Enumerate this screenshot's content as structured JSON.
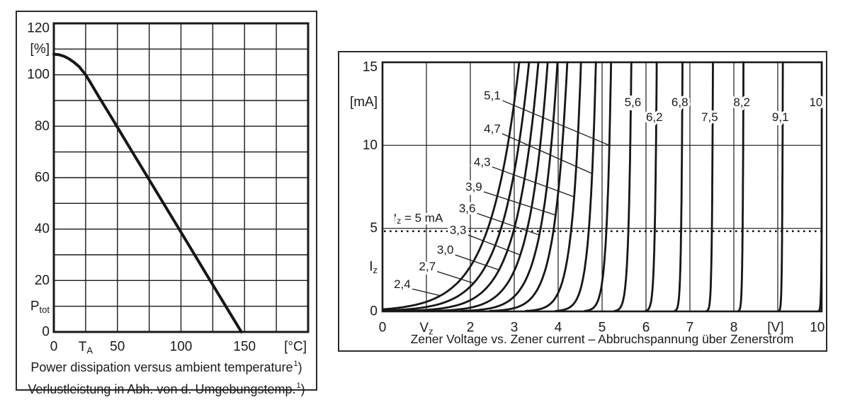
{
  "page": {
    "background": "#ffffff",
    "ink": "#1a1a1a",
    "frame_color": "#2b2b2b"
  },
  "chart_data": [
    {
      "type": "line",
      "title": "Power dissipation versus ambient temperature",
      "title_de": "Verlustleistung in Abh. von d. Umgebungstemp.",
      "footnote_marker": "1",
      "footnote_suffix": ")",
      "xlabel": "[°C]",
      "ylabel": "[%]",
      "x_axis_symbol": {
        "base": "T",
        "sub": "A"
      },
      "y_axis_symbol": {
        "base": "P",
        "sub": "tot"
      },
      "xlim": [
        0,
        200
      ],
      "ylim": [
        0,
        120
      ],
      "grid_step_x": 25,
      "grid_step_y": 10,
      "grid": "on",
      "x_ticks": [
        {
          "x": 0,
          "label": "0"
        },
        {
          "x": 25,
          "label": {
            "base": "T",
            "sub": "A"
          }
        },
        {
          "x": 50,
          "label": "50"
        },
        {
          "x": 100,
          "label": "100"
        },
        {
          "x": 150,
          "label": "150"
        },
        {
          "x": 190,
          "label": "[°C]"
        }
      ],
      "y_ticks": [
        {
          "y": 120,
          "label": "120"
        },
        {
          "y": 110,
          "label": "[%]"
        },
        {
          "y": 100,
          "label": "100"
        },
        {
          "y": 80,
          "label": "80"
        },
        {
          "y": 60,
          "label": "60"
        },
        {
          "y": 40,
          "label": "40"
        },
        {
          "y": 20,
          "label": "20"
        },
        {
          "y": 10,
          "label": {
            "base": "P",
            "sub": "tot"
          }
        },
        {
          "y": 0,
          "label": "0"
        }
      ],
      "series": [
        {
          "name": "Ptot derating vs ambient temperature",
          "points": [
            [
              0,
              108
            ],
            [
              4,
              107.8
            ],
            [
              8,
              107.2
            ],
            [
              12,
              106.2
            ],
            [
              16,
              104.8
            ],
            [
              20,
              103.1
            ],
            [
              25,
              100
            ],
            [
              27.5,
              98
            ],
            [
              35,
              91.8
            ],
            [
              45,
              83.7
            ],
            [
              60,
              71.4
            ],
            [
              80,
              55.1
            ],
            [
              100,
              38.8
            ],
            [
              120,
              22.4
            ],
            [
              140,
              6.1
            ],
            [
              147.5,
              0
            ]
          ]
        }
      ]
    },
    {
      "type": "line",
      "title": "Zener Voltage vs. Zener current – Abbruchspannung über Zenerstrom",
      "xlabel": "[V]",
      "ylabel": "[mA]",
      "xlim": [
        0,
        10
      ],
      "ylim": [
        0,
        15
      ],
      "grid_step_x": 1,
      "grid_step_y": 5,
      "grid": "on",
      "marker_line": {
        "y": 5,
        "style": "dotted",
        "label": {
          "base": "I",
          "sub": "z",
          "rest": " = 5 mA"
        },
        "label_pos": [
          0.25,
          5.6
        ]
      },
      "x_ticks": [
        {
          "x": 0,
          "label": "0"
        },
        {
          "x": 1,
          "label": {
            "base": "V",
            "sub": "z"
          }
        },
        {
          "x": 2,
          "label": "2"
        },
        {
          "x": 3,
          "label": "3"
        },
        {
          "x": 4,
          "label": "4"
        },
        {
          "x": 5,
          "label": "5"
        },
        {
          "x": 6,
          "label": "6"
        },
        {
          "x": 7,
          "label": "7"
        },
        {
          "x": 8,
          "label": "8"
        },
        {
          "x": 8.95,
          "label": "[V]"
        },
        {
          "x": 9.9,
          "label": "10"
        }
      ],
      "y_ticks": [
        {
          "y": 15,
          "label": "15"
        },
        {
          "y": 12.6,
          "label": "[mA]"
        },
        {
          "y": 10,
          "label": "10"
        },
        {
          "y": 5,
          "label": "5"
        },
        {
          "y": 2.7,
          "label": {
            "base": "I",
            "sub": "z"
          }
        },
        {
          "y": 0,
          "label": "0"
        }
      ],
      "series": [
        {
          "name": "2.4 V zener",
          "vz": 2.4,
          "s": 0.65,
          "label": "2,4",
          "label_pos": [
            0.45,
            1.65
          ],
          "leader_i": 0.95
        },
        {
          "name": "2.7 V zener",
          "vz": 2.7,
          "s": 0.58,
          "label": "2,7",
          "label_pos": [
            1.02,
            2.7
          ],
          "leader_i": 1.7
        },
        {
          "name": "3.0 V zener",
          "vz": 3.0,
          "s": 0.5,
          "label": "3,0",
          "label_pos": [
            1.43,
            3.7
          ],
          "leader_i": 2.5
        },
        {
          "name": "3.3 V zener",
          "vz": 3.3,
          "s": 0.42,
          "label": "3,3",
          "label_pos": [
            1.72,
            4.9
          ],
          "leader_i": 3.4
        },
        {
          "name": "3.6 V zener",
          "vz": 3.6,
          "s": 0.35,
          "label": "3,6",
          "label_pos": [
            1.93,
            6.2
          ],
          "leader_i": 4.6
        },
        {
          "name": "3.9 V zener",
          "vz": 3.9,
          "s": 0.28,
          "label": "3,9",
          "label_pos": [
            2.08,
            7.5
          ],
          "leader_i": 5.8
        },
        {
          "name": "4.3 V zener",
          "vz": 4.3,
          "s": 0.2,
          "label": "4,3",
          "label_pos": [
            2.27,
            9.0
          ],
          "leader_i": 6.9
        },
        {
          "name": "4.7 V zener",
          "vz": 4.7,
          "s": 0.145,
          "label": "4,7",
          "label_pos": [
            2.5,
            11.0
          ],
          "leader_i": 8.3
        },
        {
          "name": "5.1 V zener",
          "vz": 5.1,
          "s": 0.095,
          "label": "5,1",
          "label_pos": [
            2.5,
            13.0
          ],
          "leader_i": 10.0
        },
        {
          "name": "5.6 V zener",
          "vz": 5.6,
          "s": 0.06,
          "label": "5,6",
          "label_pos": [
            5.7,
            12.6
          ]
        },
        {
          "name": "6.2 V zener",
          "vz": 6.2,
          "s": 0.04,
          "label": "6,2",
          "label_pos": [
            6.19,
            11.7
          ]
        },
        {
          "name": "6.8 V zener",
          "vz": 6.8,
          "s": 0.028,
          "label": "6,8",
          "label_pos": [
            6.77,
            12.6
          ]
        },
        {
          "name": "7.5 V zener",
          "vz": 7.5,
          "s": 0.022,
          "label": "7,5",
          "label_pos": [
            7.45,
            11.7
          ]
        },
        {
          "name": "8.2 V zener",
          "vz": 8.2,
          "s": 0.018,
          "label": "8,2",
          "label_pos": [
            8.18,
            12.6
          ]
        },
        {
          "name": "9.1 V zener",
          "vz": 9.1,
          "s": 0.014,
          "label": "9,1",
          "label_pos": [
            9.06,
            11.7
          ]
        },
        {
          "name": "10 V zener",
          "vz": 10,
          "s": 0.012,
          "label": "10",
          "label_pos": [
            9.87,
            12.6
          ]
        }
      ]
    }
  ]
}
